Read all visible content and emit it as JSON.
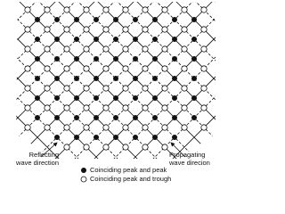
{
  "labels": {
    "reflecting": [
      "Reflecting",
      "wave direction"
    ],
    "propagating": [
      "Propagating",
      "wave direcion"
    ]
  },
  "legend": [
    {
      "label": "Coinciding peak and peak"
    },
    {
      "label": "Coinciding peak and trough"
    }
  ]
}
